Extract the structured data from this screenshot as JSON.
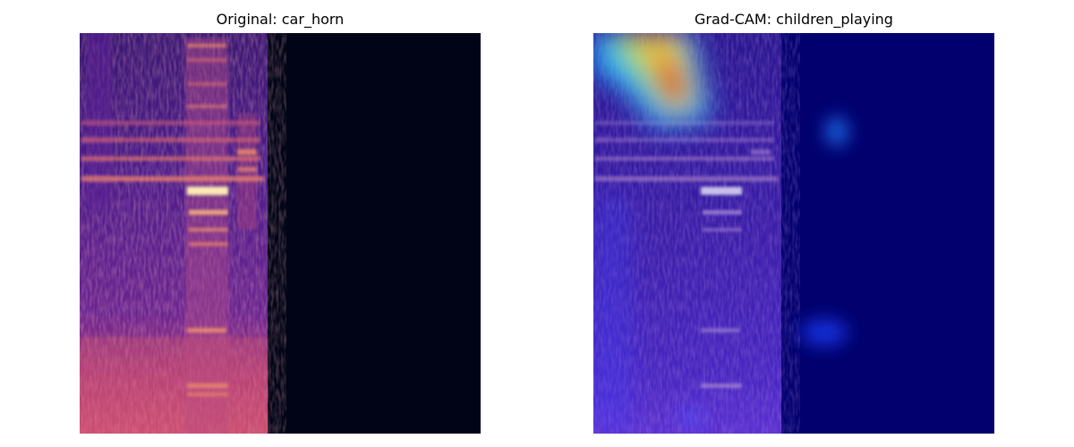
{
  "figure": {
    "left": {
      "title": "Original: car_horn",
      "kind": "mel-spectrogram",
      "colormap": "magma"
    },
    "right": {
      "title": "Grad-CAM: children_playing",
      "kind": "grad-cam-overlay",
      "colormap": "jet",
      "background_color": "#02006e"
    }
  }
}
